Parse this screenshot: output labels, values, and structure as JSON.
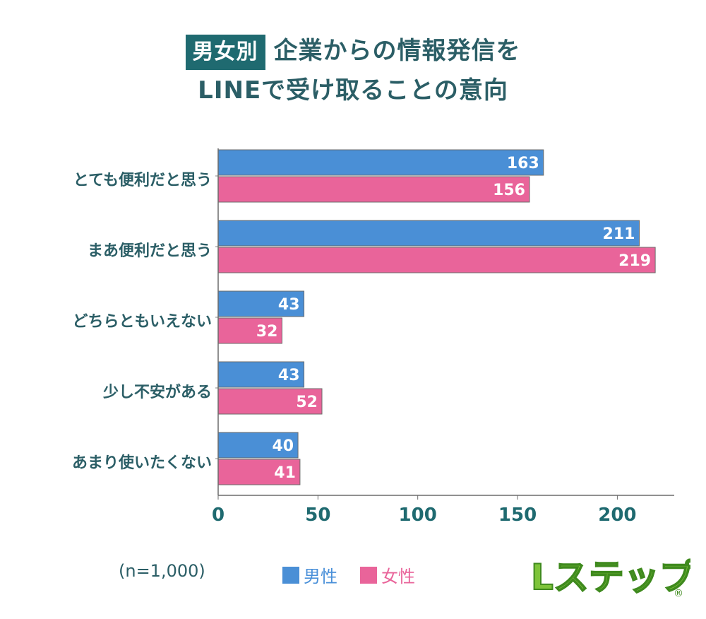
{
  "title": {
    "tag": "男女別",
    "line1": "企業からの情報発信を",
    "line2": "LINEで受け取ることの意向"
  },
  "chart_data": {
    "type": "bar",
    "orientation": "horizontal",
    "categories": [
      "とても便利だと思う",
      "まあ便利だと思う",
      "どちらともいえない",
      "少し不安がある",
      "あまり使いたくない"
    ],
    "series": [
      {
        "name": "男性",
        "values": [
          163,
          211,
          43,
          43,
          40
        ],
        "color": "#4a8fd6"
      },
      {
        "name": "女性",
        "values": [
          156,
          219,
          32,
          52,
          41
        ],
        "color": "#e9649a"
      }
    ],
    "xlim": [
      0,
      228
    ],
    "xticks": [
      "0",
      "50",
      "100",
      "150",
      "200"
    ],
    "grid": false,
    "legend_position": "bottom-center"
  },
  "footer": {
    "sample": "(n=1,000)"
  },
  "logo": {
    "text": "Lステップ",
    "mark": "®"
  }
}
